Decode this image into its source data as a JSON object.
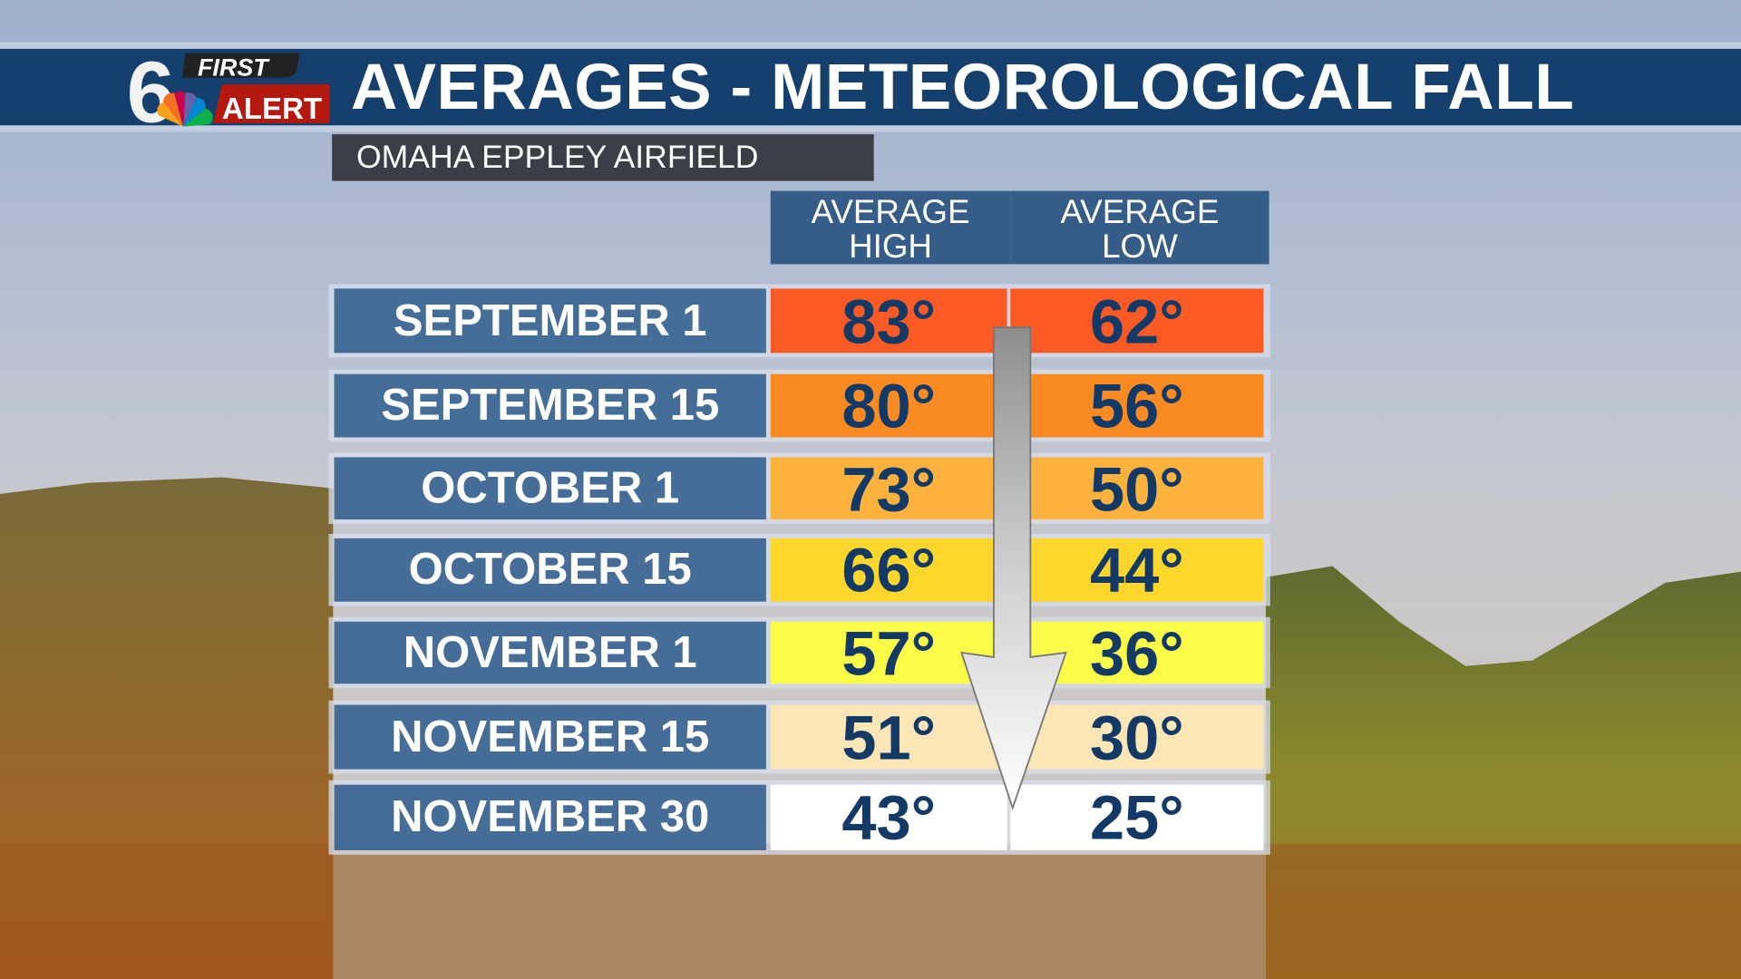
{
  "header": {
    "title": "AVERAGES - METEOROLOGICAL FALL",
    "logo": {
      "number": "6",
      "line1": "FIRST",
      "line2": "ALERT"
    }
  },
  "subtitle": "OMAHA EPPLEY AIRFIELD",
  "columns": {
    "high": [
      "AVERAGE",
      "HIGH"
    ],
    "low": [
      "AVERAGE",
      "LOW"
    ]
  },
  "rows": [
    {
      "date": "SEPTEMBER 1",
      "high": "83°",
      "low": "62°",
      "color": "#fc5a24"
    },
    {
      "date": "SEPTEMBER 15",
      "high": "80°",
      "low": "56°",
      "color": "#fc8a23"
    },
    {
      "date": "OCTOBER 1",
      "high": "73°",
      "low": "50°",
      "color": "#fdb23e"
    },
    {
      "date": "OCTOBER 15",
      "high": "66°",
      "low": "44°",
      "color": "#fdd62c"
    },
    {
      "date": "NOVEMBER 1",
      "high": "57°",
      "low": "36°",
      "color": "#fcfb47"
    },
    {
      "date": "NOVEMBER 15",
      "high": "51°",
      "low": "30°",
      "color": "#fde6b6"
    },
    {
      "date": "NOVEMBER 30",
      "high": "43°",
      "low": "25°",
      "color": "#ffffff"
    }
  ],
  "colors": {
    "banner": "#153f6c",
    "value_text": "#133967",
    "label_bg": "#2c5a8a"
  }
}
